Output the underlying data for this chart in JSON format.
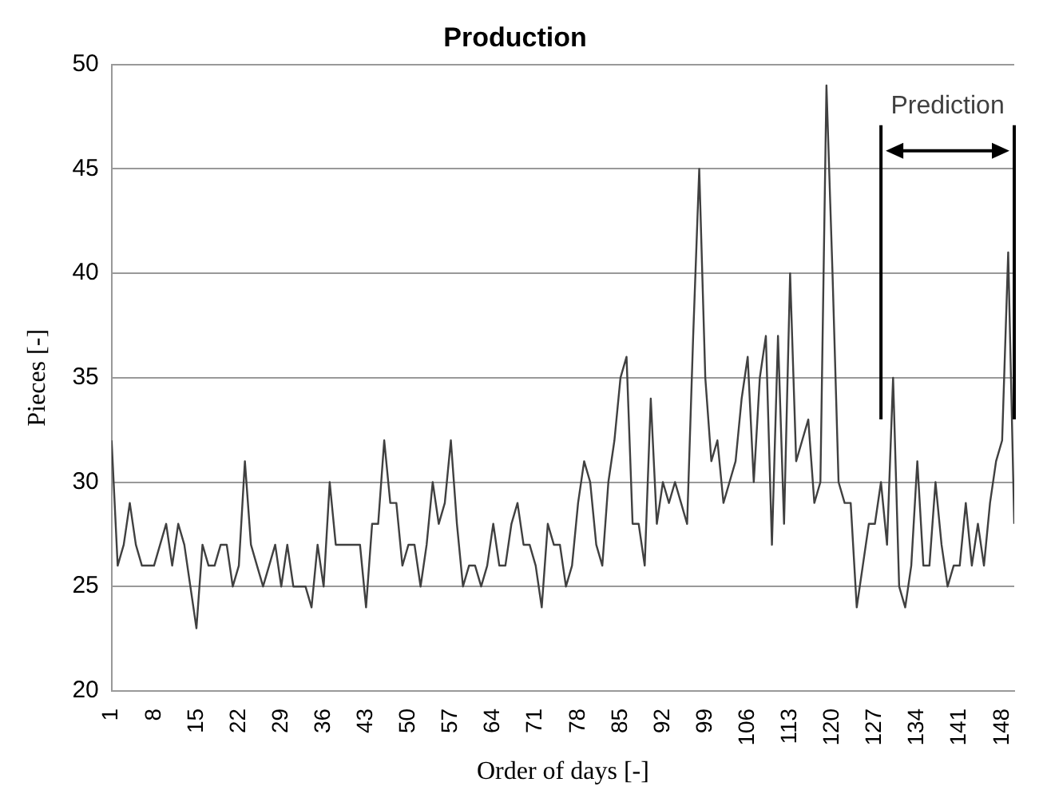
{
  "chart_data": {
    "type": "line",
    "title": "Production",
    "xlabel": "Order of days [-]",
    "ylabel": "Pieces [-]",
    "x": [
      1,
      2,
      3,
      4,
      5,
      6,
      7,
      8,
      9,
      10,
      11,
      12,
      13,
      14,
      15,
      16,
      17,
      18,
      19,
      20,
      21,
      22,
      23,
      24,
      25,
      26,
      27,
      28,
      29,
      30,
      31,
      32,
      33,
      34,
      35,
      36,
      37,
      38,
      39,
      40,
      41,
      42,
      43,
      44,
      45,
      46,
      47,
      48,
      49,
      50,
      51,
      52,
      53,
      54,
      55,
      56,
      57,
      58,
      59,
      60,
      61,
      62,
      63,
      64,
      65,
      66,
      67,
      68,
      69,
      70,
      71,
      72,
      73,
      74,
      75,
      76,
      77,
      78,
      79,
      80,
      81,
      82,
      83,
      84,
      85,
      86,
      87,
      88,
      89,
      90,
      91,
      92,
      93,
      94,
      95,
      96,
      97,
      98,
      99,
      100,
      101,
      102,
      103,
      104,
      105,
      106,
      107,
      108,
      109,
      110,
      111,
      112,
      113,
      114,
      115,
      116,
      117,
      118,
      119,
      120,
      121,
      122,
      123,
      124,
      125,
      126,
      127,
      128,
      129,
      130,
      131,
      132,
      133,
      134,
      135,
      136,
      137,
      138,
      139,
      140,
      141,
      142,
      143,
      144,
      145,
      146,
      147,
      148,
      149,
      150
    ],
    "series": [
      {
        "color": "#404040",
        "values": [
          32,
          26,
          27,
          29,
          27,
          26,
          26,
          26,
          27,
          28,
          26,
          28,
          27,
          25,
          23,
          27,
          26,
          26,
          27,
          27,
          25,
          26,
          31,
          27,
          26,
          25,
          26,
          27,
          25,
          27,
          25,
          25,
          25,
          24,
          27,
          25,
          30,
          27,
          27,
          27,
          27,
          27,
          24,
          28,
          28,
          32,
          29,
          29,
          26,
          27,
          27,
          25,
          27,
          30,
          28,
          29,
          32,
          28,
          25,
          26,
          26,
          25,
          26,
          28,
          26,
          26,
          28,
          29,
          27,
          27,
          26,
          24,
          28,
          27,
          27,
          25,
          26,
          29,
          31,
          30,
          27,
          26,
          30,
          32,
          35,
          36,
          28,
          28,
          26,
          34,
          28,
          30,
          29,
          30,
          29,
          28,
          37,
          45,
          35,
          31,
          32,
          29,
          30,
          31,
          34,
          36,
          30,
          35,
          37,
          27,
          37,
          28,
          40,
          31,
          32,
          33,
          29,
          30,
          49,
          40,
          30,
          29,
          29,
          24,
          26,
          28,
          28,
          30,
          27,
          35,
          25,
          24,
          26,
          31,
          26,
          26,
          30,
          27,
          25,
          26,
          26,
          29,
          26,
          28,
          26,
          29,
          31,
          32,
          41,
          28
        ]
      }
    ],
    "xlim": [
      1,
      150
    ],
    "xticks": [
      1,
      8,
      15,
      22,
      29,
      36,
      43,
      50,
      57,
      64,
      71,
      78,
      85,
      92,
      99,
      106,
      113,
      120,
      127,
      134,
      141,
      148
    ],
    "ylim": [
      20,
      50
    ],
    "yticks": [
      20,
      25,
      30,
      35,
      40,
      45,
      50
    ],
    "grid": "y",
    "marker": "none",
    "line_style": "solid",
    "ref_lines": [
      {
        "axis": "x",
        "value": 128,
        "color": "#000000"
      },
      {
        "axis": "x",
        "value": 150,
        "color": "#000000"
      }
    ],
    "annotations": [
      "Prediction"
    ]
  }
}
